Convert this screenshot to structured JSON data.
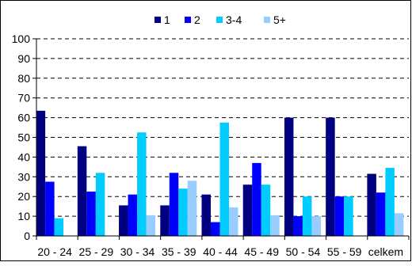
{
  "chart_data": {
    "type": "bar",
    "title": "",
    "xlabel": "",
    "ylabel": "",
    "ylim": [
      0,
      100
    ],
    "yticks": [
      0,
      10,
      20,
      30,
      40,
      50,
      60,
      70,
      80,
      90,
      100
    ],
    "grid": true,
    "legend_position": "top",
    "categories": [
      "20 - 24",
      "25 - 29",
      "30 - 34",
      "35 - 39",
      "40 - 44",
      "45 - 49",
      "50 - 54",
      "55 - 59",
      "celkem"
    ],
    "series": [
      {
        "name": "1",
        "color": "#000080",
        "values": [
          63.5,
          45.5,
          15.5,
          15.5,
          21,
          26,
          60,
          60,
          31.5
        ]
      },
      {
        "name": "2",
        "color": "#0000ff",
        "values": [
          27.5,
          22.5,
          21,
          32,
          7,
          37,
          10,
          20,
          22
        ]
      },
      {
        "name": "3-4",
        "color": "#00ccff",
        "values": [
          9,
          32,
          52.5,
          24,
          57.5,
          26,
          20,
          20,
          34.5
        ]
      },
      {
        "name": "5+",
        "color": "#99ccff",
        "values": [
          0,
          0,
          10.5,
          28,
          14.5,
          10.5,
          10,
          0,
          11.5
        ]
      }
    ]
  }
}
